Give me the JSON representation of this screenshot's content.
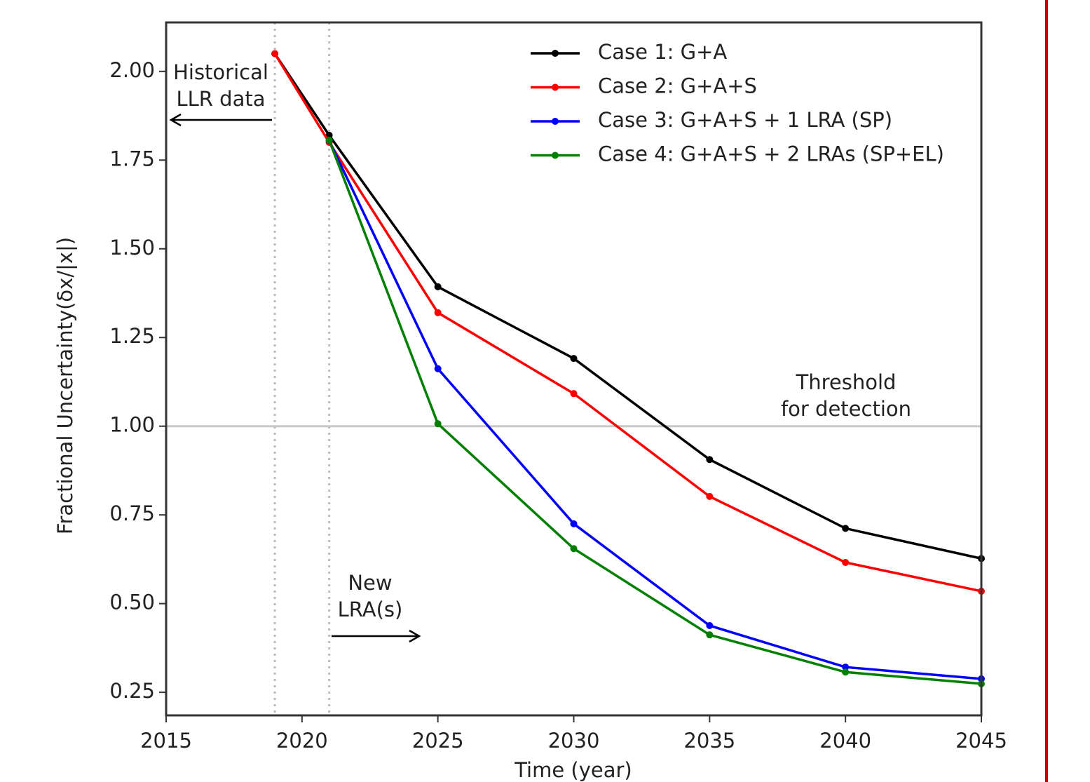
{
  "chart_data": {
    "type": "line",
    "ylabel": "Fractional Uncertainty(δx/|x|)",
    "xlabel": "Time (year)",
    "x": [
      2019,
      2021,
      2025,
      2030,
      2035,
      2040,
      2045
    ],
    "series": [
      {
        "name": "Case 1: G+A",
        "color": "#000000",
        "values": [
          2.05,
          1.82,
          1.393,
          1.191,
          0.906,
          0.712,
          0.627
        ]
      },
      {
        "name": "Case 2: G+A+S",
        "color": "#ff0000",
        "values": [
          2.05,
          1.8,
          1.32,
          1.092,
          0.802,
          0.616,
          0.535
        ]
      },
      {
        "name": "Case 3: G+A+S + 1 LRA (SP)",
        "color": "#0000ff",
        "values": [
          null,
          1.805,
          1.162,
          0.725,
          0.438,
          0.321,
          0.288
        ]
      },
      {
        "name": "Case 4: G+A+S + 2 LRAs (SP+EL)",
        "color": "#008000",
        "values": [
          null,
          1.806,
          1.007,
          0.655,
          0.412,
          0.307,
          0.274
        ]
      }
    ],
    "xlim": [
      2015,
      2045
    ],
    "xticks": [
      2015,
      2020,
      2025,
      2030,
      2035,
      2040,
      2045
    ],
    "ylim": [
      0.185,
      2.138
    ],
    "yticks": [
      {
        "value": 0.25,
        "label": "0.25"
      },
      {
        "value": 0.5,
        "label": "0.50"
      },
      {
        "value": 0.75,
        "label": "0.75"
      },
      {
        "value": 1,
        "label": "1.00"
      },
      {
        "value": 1.25,
        "label": "1.25"
      },
      {
        "value": 1.5,
        "label": "1.50"
      },
      {
        "value": 1.75,
        "label": "1.75"
      },
      {
        "value": 2,
        "label": "2.00"
      }
    ],
    "vlines": [
      2019,
      2021
    ],
    "hline": 1,
    "legend": "upper right",
    "annotations": [
      {
        "lines": [
          "Historical",
          "LLR data"
        ]
      },
      {
        "lines": [
          "New",
          "LRA(s)"
        ]
      },
      {
        "lines": [
          "Threshold",
          "for detection"
        ]
      }
    ]
  }
}
